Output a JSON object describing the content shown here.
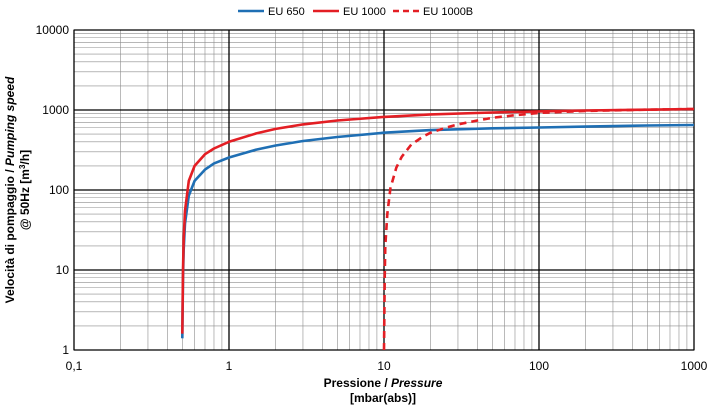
{
  "chart_data": {
    "type": "line",
    "title": "",
    "xscale": "log",
    "yscale": "log",
    "xlim": [
      0.1,
      1000
    ],
    "ylim": [
      1,
      10000
    ],
    "grid": true,
    "legend_placement": "top-center",
    "xlabel": {
      "plain": "Pressione / ",
      "italic": "Pressure",
      "line2": "[mbar(abs)]"
    },
    "ylabel": {
      "plain": "Velocità di pompaggio / ",
      "italic": "Pumping speed",
      "line2_a": "@ 50Hz [m",
      "line2_sup": "3",
      "line2_b": "/h]"
    },
    "xticks": [
      {
        "value": 0.1,
        "label": "0,1"
      },
      {
        "value": 1,
        "label": "1"
      },
      {
        "value": 10,
        "label": "10"
      },
      {
        "value": 100,
        "label": "100"
      },
      {
        "value": 1000,
        "label": "1000"
      }
    ],
    "yticks": [
      {
        "value": 1,
        "label": "1"
      },
      {
        "value": 10,
        "label": "10"
      },
      {
        "value": 100,
        "label": "100"
      },
      {
        "value": 1000,
        "label": "1000"
      },
      {
        "value": 10000,
        "label": "10000"
      }
    ],
    "series": [
      {
        "name": "EU 650",
        "color": "#1f6fb4",
        "dash": "solid",
        "x": [
          0.5,
          0.505,
          0.51,
          0.52,
          0.55,
          0.6,
          0.7,
          0.8,
          1,
          1.5,
          2,
          3,
          5,
          10,
          20,
          50,
          100,
          200,
          500,
          1000
        ],
        "y": [
          1.4,
          8,
          18,
          38,
          85,
          130,
          180,
          215,
          255,
          320,
          360,
          410,
          460,
          520,
          560,
          590,
          605,
          620,
          640,
          650
        ]
      },
      {
        "name": "EU 1000",
        "color": "#e31e24",
        "dash": "solid",
        "x": [
          0.5,
          0.505,
          0.51,
          0.52,
          0.55,
          0.6,
          0.7,
          0.8,
          1,
          1.5,
          2,
          3,
          5,
          10,
          20,
          50,
          100,
          200,
          500,
          1000
        ],
        "y": [
          1.6,
          10,
          25,
          55,
          130,
          200,
          280,
          330,
          400,
          510,
          580,
          660,
          740,
          820,
          880,
          930,
          960,
          985,
          1010,
          1030
        ]
      },
      {
        "name": "EU 1000B",
        "color": "#e31e24",
        "dash": "dashed",
        "x": [
          10,
          10.1,
          10.2,
          10.5,
          11,
          12,
          13,
          15,
          18,
          20,
          25,
          30,
          40,
          50,
          70,
          100,
          200,
          500,
          1000
        ],
        "y": [
          1,
          8,
          20,
          50,
          105,
          190,
          260,
          370,
          470,
          520,
          600,
          660,
          740,
          800,
          860,
          920,
          975,
          1010,
          1030
        ]
      }
    ]
  }
}
